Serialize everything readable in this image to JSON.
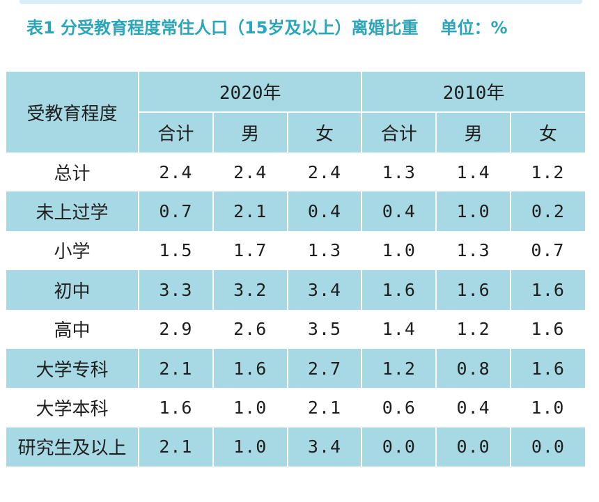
{
  "title": {
    "main": "表1 分受教育程度常住人口（15岁及以上）离婚比重",
    "unit": "单位：%"
  },
  "colors": {
    "accent": "#2aa6b8",
    "header_bg": "#a7d9e5",
    "text": "#1e1e1e"
  },
  "table": {
    "row_header": "受教育程度",
    "years": [
      "2020年",
      "2010年"
    ],
    "sub_headers": [
      "合计",
      "男",
      "女",
      "合计",
      "男",
      "女"
    ],
    "rows": [
      {
        "label": "总计",
        "values": [
          "2.4",
          "2.4",
          "2.4",
          "1.3",
          "1.4",
          "1.2"
        ]
      },
      {
        "label": "未上过学",
        "values": [
          "0.7",
          "2.1",
          "0.4",
          "0.4",
          "1.0",
          "0.2"
        ]
      },
      {
        "label": "小学",
        "values": [
          "1.5",
          "1.7",
          "1.3",
          "1.0",
          "1.3",
          "0.7"
        ]
      },
      {
        "label": "初中",
        "values": [
          "3.3",
          "3.2",
          "3.4",
          "1.6",
          "1.6",
          "1.6"
        ]
      },
      {
        "label": "高中",
        "values": [
          "2.9",
          "2.6",
          "3.5",
          "1.4",
          "1.2",
          "1.6"
        ]
      },
      {
        "label": "大学专科",
        "values": [
          "2.1",
          "1.6",
          "2.7",
          "1.2",
          "0.8",
          "1.6"
        ]
      },
      {
        "label": "大学本科",
        "values": [
          "1.6",
          "1.0",
          "2.1",
          "0.6",
          "0.4",
          "1.0"
        ]
      },
      {
        "label": "研究生及以上",
        "values": [
          "2.1",
          "1.0",
          "3.4",
          "0.0",
          "0.0",
          "0.0"
        ]
      }
    ]
  }
}
